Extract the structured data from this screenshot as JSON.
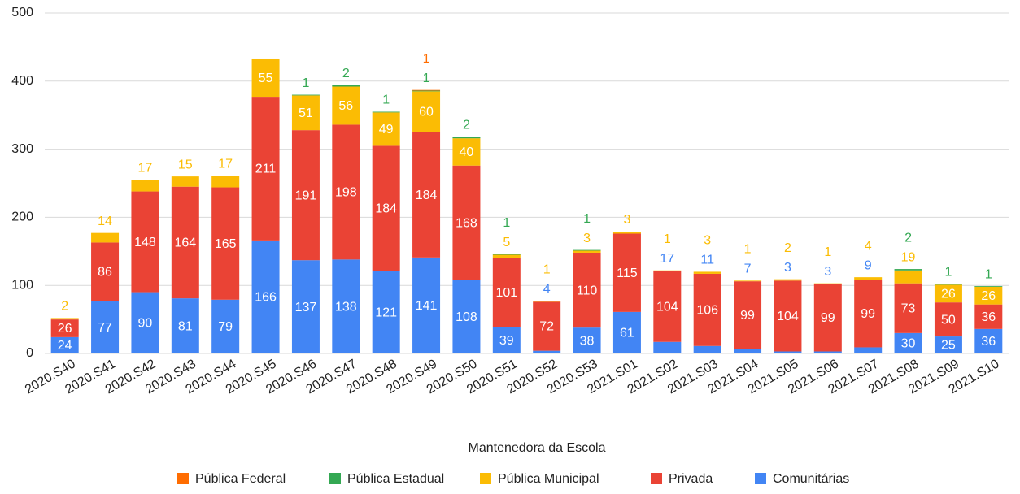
{
  "chart_data": {
    "type": "stacked_bar",
    "legend_title": "Mantenedora da Escola",
    "categories": [
      "2020.S40",
      "2020.S41",
      "2020.S42",
      "2020.S43",
      "2020.S44",
      "2020.S45",
      "2020.S46",
      "2020.S47",
      "2020.S48",
      "2020.S49",
      "2020.S50",
      "2020.S51",
      "2020.S52",
      "2020.S53",
      "2021.S01",
      "2021.S02",
      "2021.S03",
      "2021.S04",
      "2021.S05",
      "2021.S06",
      "2021.S07",
      "2021.S08",
      "2021.S09",
      "2021.S10"
    ],
    "series": [
      {
        "name": "Comunitárias",
        "color": "#4285f4",
        "values": [
          24,
          77,
          90,
          81,
          79,
          166,
          137,
          138,
          121,
          141,
          108,
          39,
          4,
          38,
          61,
          17,
          11,
          7,
          3,
          3,
          9,
          30,
          25,
          36
        ]
      },
      {
        "name": "Privada",
        "color": "#ea4335",
        "values": [
          26,
          86,
          148,
          164,
          165,
          211,
          191,
          198,
          184,
          184,
          168,
          101,
          72,
          110,
          115,
          104,
          106,
          99,
          104,
          99,
          99,
          73,
          50,
          36
        ]
      },
      {
        "name": "Pública Municipal",
        "color": "#fbbc04",
        "values": [
          2,
          14,
          17,
          15,
          17,
          55,
          51,
          56,
          49,
          60,
          40,
          5,
          1,
          3,
          3,
          1,
          3,
          1,
          2,
          1,
          4,
          19,
          26,
          26
        ]
      },
      {
        "name": "Pública Estadual",
        "color": "#34a853",
        "values": [
          null,
          null,
          null,
          null,
          null,
          null,
          1,
          2,
          1,
          1,
          2,
          1,
          null,
          1,
          null,
          null,
          null,
          null,
          null,
          null,
          null,
          2,
          1,
          1
        ]
      },
      {
        "name": "Pública Federal",
        "color": "#ff6d01",
        "values": [
          null,
          null,
          null,
          null,
          null,
          null,
          null,
          null,
          null,
          1,
          null,
          null,
          null,
          null,
          null,
          null,
          null,
          null,
          null,
          null,
          null,
          null,
          null,
          null
        ]
      }
    ],
    "ylim": [
      0,
      500
    ],
    "yticks": [
      0,
      100,
      200,
      300,
      400,
      500
    ],
    "grid": true,
    "legend": "bottom"
  }
}
